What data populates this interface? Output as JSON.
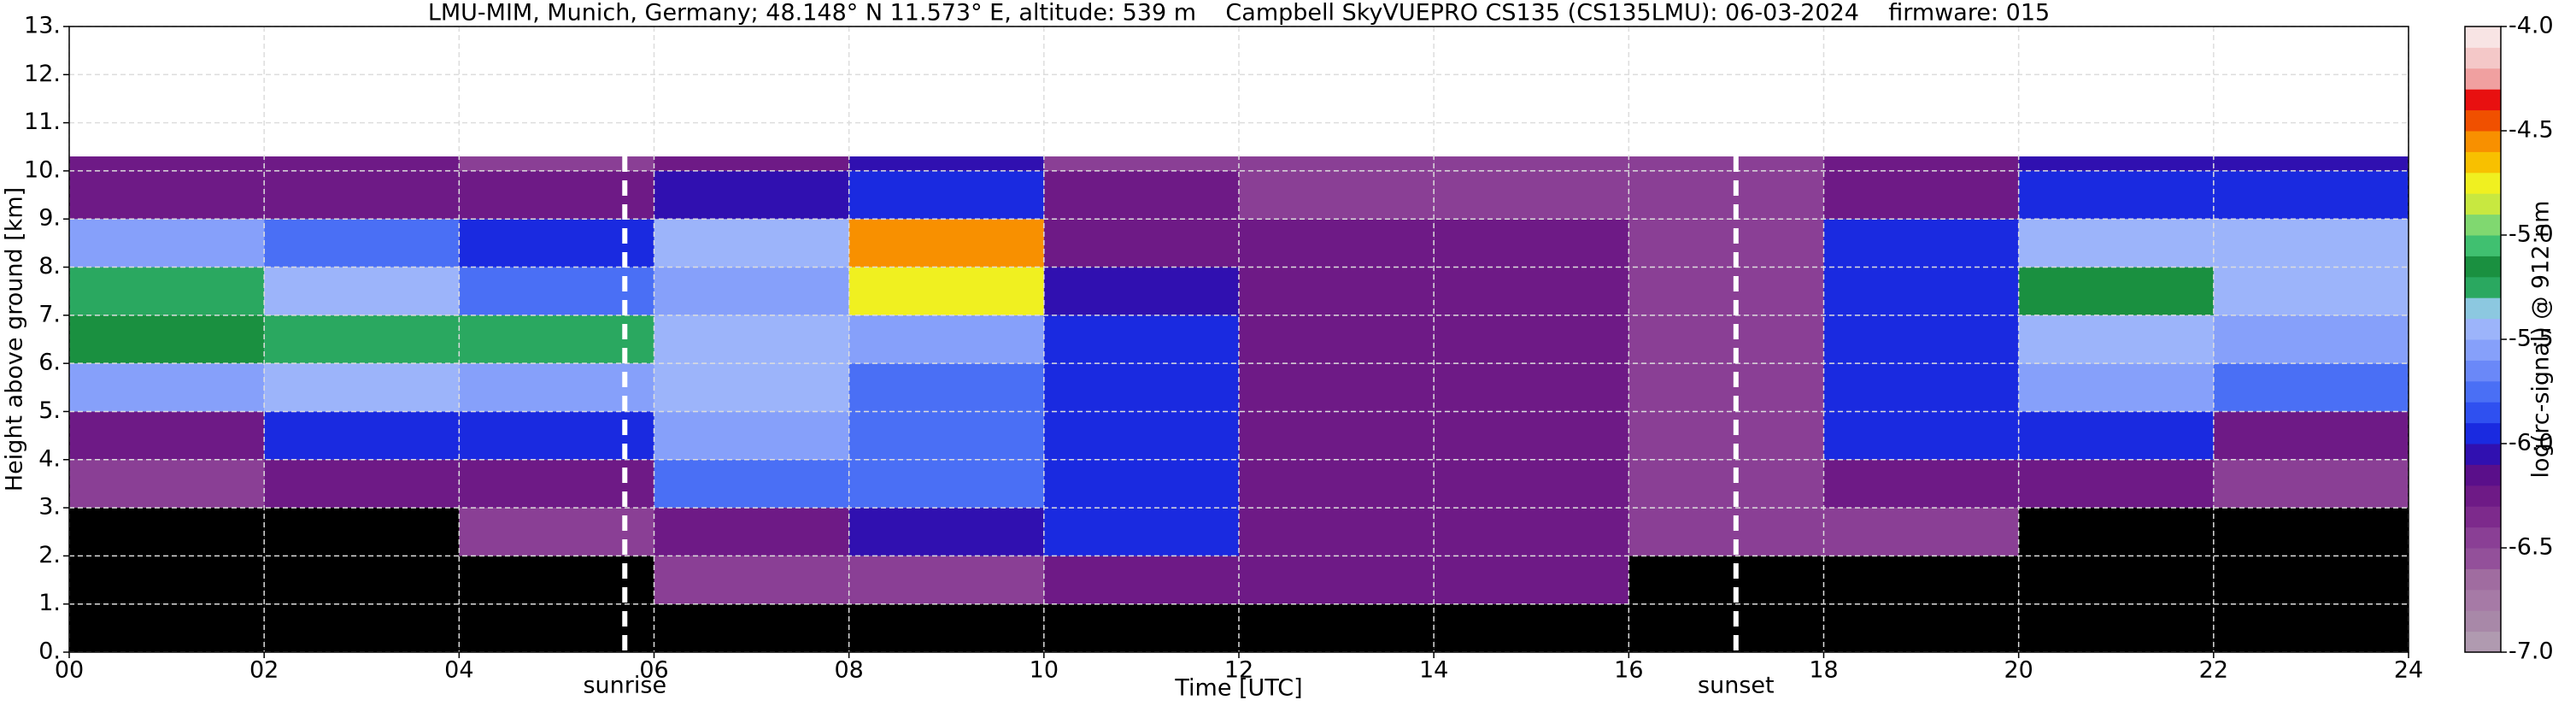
{
  "chart_data": {
    "type": "heatmap",
    "title": "LMU-MIM, Munich, Germany; 48.148° N 11.573° E, altitude: 539 m    Campbell SkyVUEPRO CS135 (CS135LMU): 06-03-2024    firmware: 015",
    "x_label": "Time [UTC]",
    "y_label": "Height above ground [km]",
    "x": [
      0,
      2,
      4,
      6,
      8,
      10,
      12,
      14,
      16,
      18,
      20,
      22,
      24
    ],
    "y": [
      0,
      1,
      2,
      3,
      4,
      5,
      6,
      7,
      8,
      9,
      10,
      10.3
    ],
    "z": [
      [
        null,
        null,
        null,
        null,
        null,
        null,
        null,
        null,
        null,
        null,
        null,
        null
      ],
      [
        null,
        null,
        null,
        -6.5,
        -6.4,
        -6.2,
        -6.3,
        -6.3,
        null,
        null,
        null,
        null
      ],
      [
        null,
        null,
        -6.5,
        -6.2,
        -6.1,
        -6.0,
        -6.3,
        -6.3,
        -6.5,
        -6.5,
        null,
        null
      ],
      [
        -6.4,
        -6.3,
        -6.3,
        -5.7,
        -5.8,
        -6.0,
        -6.2,
        -6.3,
        -6.4,
        -6.3,
        -6.3,
        -6.4
      ],
      [
        -6.2,
        -6.0,
        -6.0,
        -5.6,
        -5.7,
        -6.0,
        -6.2,
        -6.2,
        -6.4,
        -6.0,
        -6.0,
        -6.2
      ],
      [
        -5.6,
        -5.5,
        -5.6,
        -5.4,
        -5.7,
        -6.0,
        -6.2,
        -6.3,
        -6.5,
        -6.0,
        -5.6,
        -5.8
      ],
      [
        -5.2,
        -5.3,
        -5.3,
        -5.4,
        -5.6,
        -6.0,
        -6.2,
        -6.2,
        -6.5,
        -5.9,
        -5.4,
        -5.6
      ],
      [
        -5.3,
        -5.5,
        -5.8,
        -5.6,
        -4.8,
        -6.1,
        -6.2,
        -6.3,
        -6.4,
        -5.9,
        -5.2,
        -5.4
      ],
      [
        -5.6,
        -5.7,
        -5.9,
        -5.5,
        -4.6,
        -6.2,
        -6.3,
        -6.3,
        -6.4,
        -6.0,
        -5.4,
        -5.5
      ],
      [
        -6.2,
        -6.2,
        -6.3,
        -6.1,
        -5.9,
        -6.3,
        -6.4,
        -6.4,
        -6.4,
        -6.3,
        -6.0,
        -6.0
      ],
      [
        -6.3,
        -6.3,
        -6.4,
        -6.2,
        -6.1,
        -6.4,
        -6.4,
        -6.4,
        -6.4,
        -6.3,
        -6.1,
        -6.1
      ]
    ],
    "xlim": [
      0,
      24
    ],
    "xticks": [
      {
        "value": 0,
        "label": "00"
      },
      {
        "value": 2,
        "label": "02"
      },
      {
        "value": 4,
        "label": "04"
      },
      {
        "value": 6,
        "label": "06"
      },
      {
        "value": 8,
        "label": "08"
      },
      {
        "value": 10,
        "label": "10"
      },
      {
        "value": 12,
        "label": "12"
      },
      {
        "value": 14,
        "label": "14"
      },
      {
        "value": 16,
        "label": "16"
      },
      {
        "value": 18,
        "label": "18"
      },
      {
        "value": 20,
        "label": "20"
      },
      {
        "value": 22,
        "label": "22"
      },
      {
        "value": 24,
        "label": "24"
      }
    ],
    "ylim": [
      0,
      13
    ],
    "yticks": [
      {
        "value": 0,
        "label": "0."
      },
      {
        "value": 1,
        "label": "1."
      },
      {
        "value": 2,
        "label": "2."
      },
      {
        "value": 3,
        "label": "3."
      },
      {
        "value": 4,
        "label": "4."
      },
      {
        "value": 5,
        "label": "5."
      },
      {
        "value": 6,
        "label": "6."
      },
      {
        "value": 7,
        "label": "7."
      },
      {
        "value": 8,
        "label": "8."
      },
      {
        "value": 9,
        "label": "9."
      },
      {
        "value": 10,
        "label": "10."
      },
      {
        "value": 11,
        "label": "11."
      },
      {
        "value": 12,
        "label": "12."
      },
      {
        "value": 13,
        "label": "13."
      }
    ],
    "grid": true,
    "annotations": [
      {
        "text": "sunrise",
        "x": 5.7
      },
      {
        "text": "sunset",
        "x": 17.1
      }
    ],
    "colorbar": {
      "label": "log(rc-signal) @ 912 nm",
      "clim": [
        -7,
        -4
      ],
      "ticks": [
        {
          "value": -7,
          "label": "-7.0"
        },
        {
          "value": -6.5,
          "label": "-6.5"
        },
        {
          "value": -6,
          "label": "-6.0"
        },
        {
          "value": -5.5,
          "label": "-5.5"
        },
        {
          "value": -5,
          "label": "-5.0"
        },
        {
          "value": -4.5,
          "label": "-4.5"
        },
        {
          "value": -4,
          "label": "-4.0"
        }
      ],
      "colors": [
        "#b09ab0",
        "#a888a8",
        "#a67aa6",
        "#a06ca0",
        "#93509a",
        "#8a3f95",
        "#7d2a8c",
        "#6e1a86",
        "#5a0f8a",
        "#3010b0",
        "#1a2ae0",
        "#2f50f0",
        "#4a6ff5",
        "#6a88f8",
        "#86a0fa",
        "#9cb4fa",
        "#8cc8e0",
        "#2aa860",
        "#1a9040",
        "#40c070",
        "#80d870",
        "#c8e840",
        "#f0f020",
        "#f8c000",
        "#f89000",
        "#f05000",
        "#e81010",
        "#f0a0a0",
        "#f4c8c8",
        "#f8e4e4"
      ]
    }
  }
}
